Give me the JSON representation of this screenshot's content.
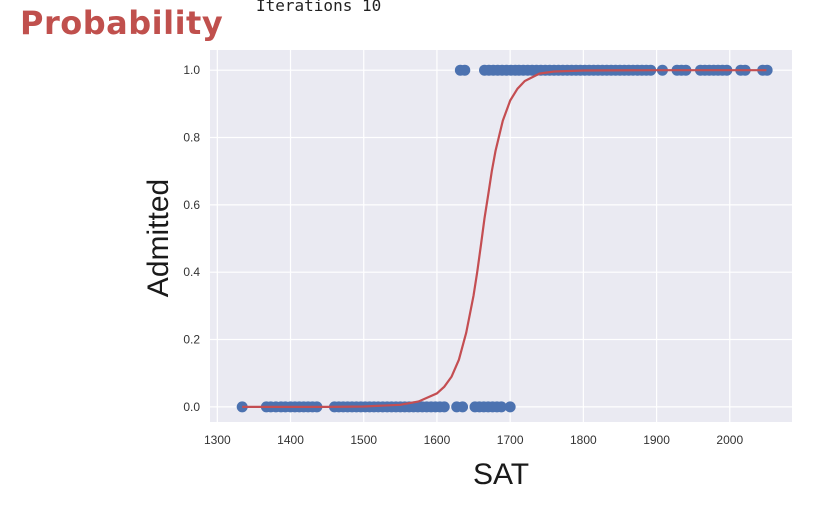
{
  "slide_title": "Probability",
  "console_text": "Iterations 10",
  "chart_data": {
    "type": "scatter",
    "xlabel": "SAT",
    "ylabel": "Admitted",
    "xlim": [
      1290,
      2085
    ],
    "ylim": [
      -0.045,
      1.06
    ],
    "x_ticks": [
      1300,
      1400,
      1500,
      1600,
      1700,
      1800,
      1900,
      2000
    ],
    "y_ticks": [
      0.0,
      0.2,
      0.4,
      0.6,
      0.8,
      1.0
    ],
    "grid": true,
    "plot_background": "#eaeaf2",
    "colors": {
      "points": "#4c72b0",
      "curve": "#c44e52"
    },
    "series": [
      {
        "kind": "points",
        "y": 0,
        "x": [
          1334,
          1367,
          1373,
          1380,
          1387,
          1393,
          1400,
          1406,
          1412,
          1418,
          1424,
          1430,
          1436,
          1460,
          1466,
          1472,
          1478,
          1484,
          1490,
          1496,
          1502,
          1508,
          1514,
          1520,
          1526,
          1532,
          1538,
          1544,
          1550,
          1556,
          1562,
          1568,
          1574,
          1580,
          1586,
          1592,
          1598,
          1604,
          1610,
          1627,
          1635,
          1652,
          1658,
          1664,
          1670,
          1676,
          1682,
          1688,
          1700
        ]
      },
      {
        "kind": "points",
        "y": 1,
        "x": [
          1632,
          1638,
          1665,
          1671,
          1677,
          1683,
          1689,
          1695,
          1701,
          1707,
          1712,
          1718,
          1724,
          1730,
          1736,
          1742,
          1748,
          1754,
          1760,
          1766,
          1772,
          1778,
          1784,
          1790,
          1796,
          1802,
          1808,
          1814,
          1820,
          1826,
          1832,
          1838,
          1844,
          1850,
          1856,
          1862,
          1868,
          1874,
          1880,
          1886,
          1892,
          1908,
          1928,
          1934,
          1940,
          1960,
          1966,
          1972,
          1978,
          1984,
          1990,
          1996,
          2015,
          2021,
          2045,
          2051
        ]
      },
      {
        "kind": "curve",
        "x": [
          1334,
          1400,
          1450,
          1500,
          1550,
          1575,
          1600,
          1610,
          1620,
          1630,
          1640,
          1650,
          1655,
          1660,
          1665,
          1670,
          1675,
          1680,
          1690,
          1700,
          1710,
          1720,
          1740,
          1760,
          1800,
          1900,
          2000,
          2050
        ],
        "y": [
          0.0,
          0.0,
          0.0,
          0.001,
          0.006,
          0.016,
          0.04,
          0.06,
          0.09,
          0.14,
          0.22,
          0.33,
          0.4,
          0.48,
          0.56,
          0.63,
          0.7,
          0.76,
          0.85,
          0.91,
          0.945,
          0.968,
          0.99,
          0.996,
          0.999,
          1.0,
          1.0,
          1.0
        ]
      }
    ]
  }
}
